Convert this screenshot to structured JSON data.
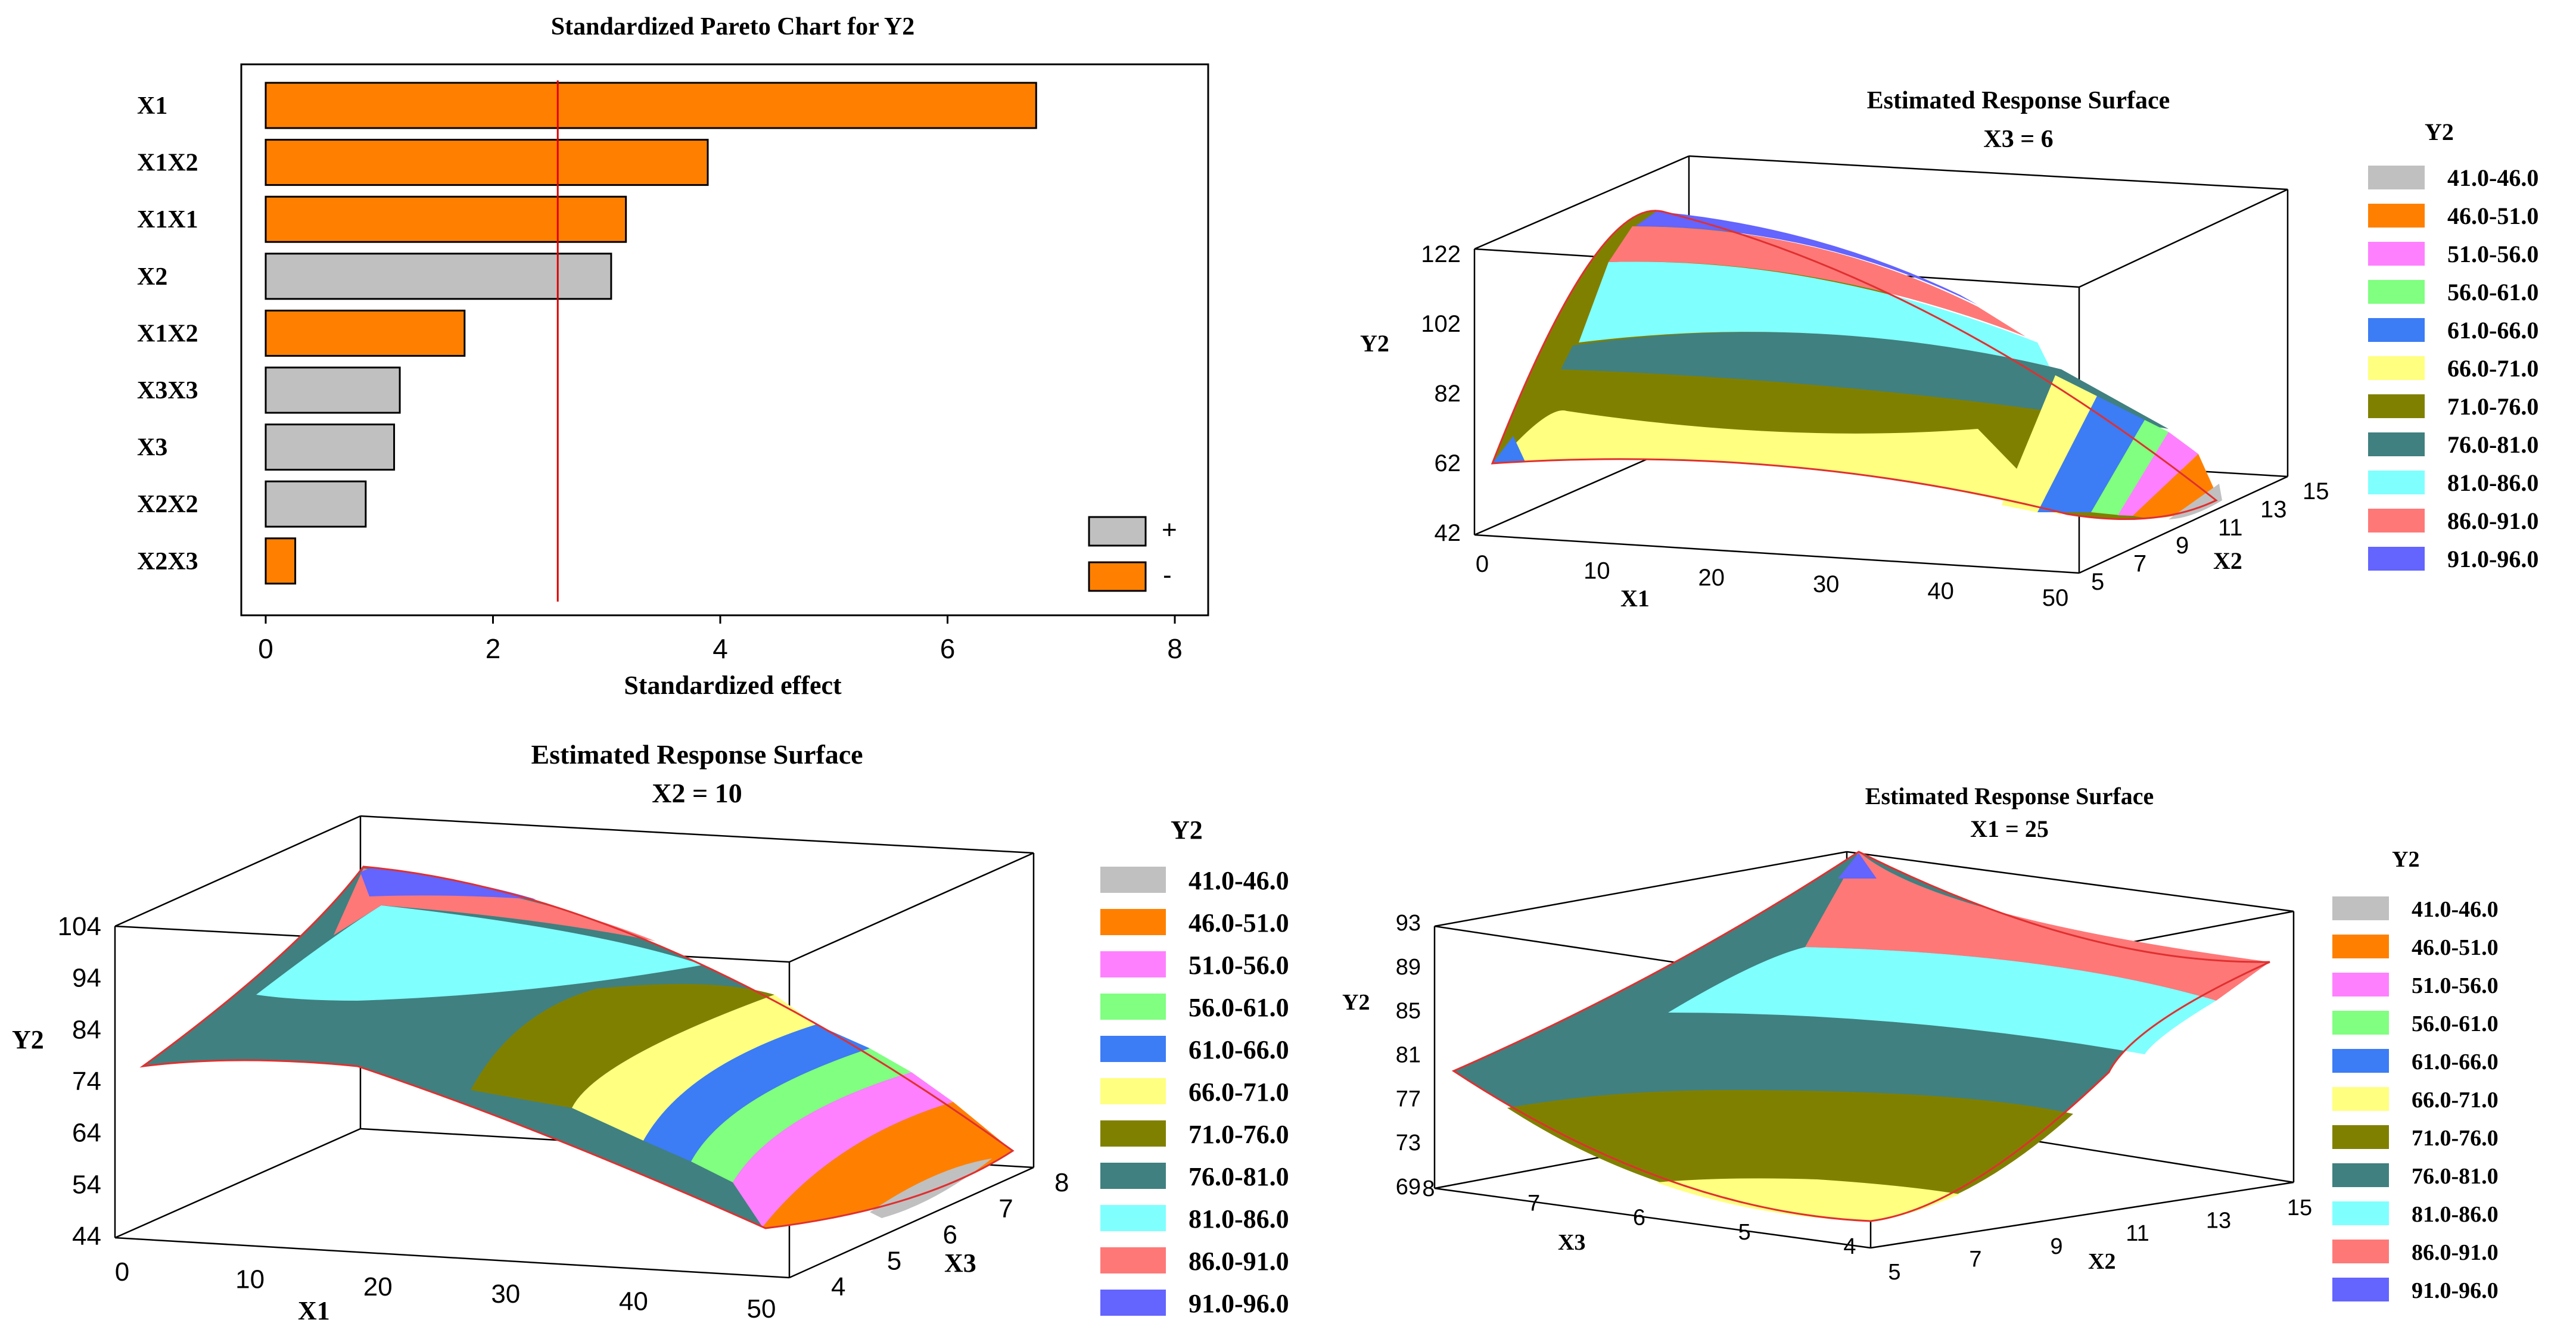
{
  "chart_data": [
    {
      "type": "bar",
      "orientation": "horizontal",
      "title": "Standardized Pareto Chart for Y2",
      "xlabel": "Standardized effect",
      "xlim": [
        0,
        8
      ],
      "xticks": [
        "0",
        "2",
        "4",
        "6",
        "8"
      ],
      "reference_line": 2.57,
      "categories": [
        "X1",
        "X1X2",
        "X1X1",
        "X2",
        "X1X2",
        "X3X3",
        "X3",
        "X2X2",
        "X2X3"
      ],
      "values": [
        6.78,
        3.89,
        3.17,
        3.04,
        1.75,
        1.18,
        1.13,
        0.88,
        0.26
      ],
      "signs": [
        "-",
        "-",
        "-",
        "+",
        "-",
        "+",
        "+",
        "+",
        "-"
      ],
      "legend": [
        {
          "label": "+",
          "color": "#c0c0c0"
        },
        {
          "label": "-",
          "color": "#ff8000"
        }
      ]
    },
    {
      "type": "surface",
      "title": "Estimated Response Surface",
      "subtitle": "X3 = 6",
      "xlabel": "X1",
      "ylabel": "Y2",
      "zlabel": "X2",
      "xticks": [
        "0",
        "10",
        "20",
        "30",
        "40",
        "50"
      ],
      "yticks": [
        "42",
        "62",
        "82",
        "102",
        "122"
      ],
      "zticks": [
        "5",
        "7",
        "9",
        "11",
        "13",
        "15"
      ],
      "legend_title": "Y2"
    },
    {
      "type": "surface",
      "title": "Estimated Response Surface",
      "subtitle": "X2 = 10",
      "xlabel": "X1",
      "ylabel": "Y2",
      "zlabel": "X3",
      "xticks": [
        "0",
        "10",
        "20",
        "30",
        "40",
        "50"
      ],
      "yticks": [
        "44",
        "54",
        "64",
        "74",
        "84",
        "94",
        "104"
      ],
      "zticks": [
        "4",
        "5",
        "6",
        "7",
        "8"
      ],
      "legend_title": "Y2"
    },
    {
      "type": "surface",
      "title": "Estimated Response Surface",
      "subtitle": "X1 = 25",
      "xlabel": "X3",
      "ylabel": "Y2",
      "zlabel": "X2",
      "xticks": [
        "8",
        "7",
        "6",
        "5",
        "4"
      ],
      "yticks": [
        "69",
        "73",
        "77",
        "81",
        "85",
        "89",
        "93"
      ],
      "zticks": [
        "5",
        "7",
        "9",
        "11",
        "13",
        "15"
      ],
      "legend_title": "Y2"
    }
  ],
  "contour_legend": [
    {
      "label": "41.0-46.0",
      "color": "#c0c0c0"
    },
    {
      "label": "46.0-51.0",
      "color": "#ff8000"
    },
    {
      "label": "51.0-56.0",
      "color": "#ff80ff"
    },
    {
      "label": "56.0-61.0",
      "color": "#80ff80"
    },
    {
      "label": "61.0-66.0",
      "color": "#3c7cf5"
    },
    {
      "label": "66.0-71.0",
      "color": "#ffff80"
    },
    {
      "label": "71.0-76.0",
      "color": "#808000"
    },
    {
      "label": "76.0-81.0",
      "color": "#408080"
    },
    {
      "label": "81.0-86.0",
      "color": "#80ffff"
    },
    {
      "label": "86.0-91.0",
      "color": "#ff7878"
    },
    {
      "label": "91.0-96.0",
      "color": "#6464ff"
    }
  ]
}
